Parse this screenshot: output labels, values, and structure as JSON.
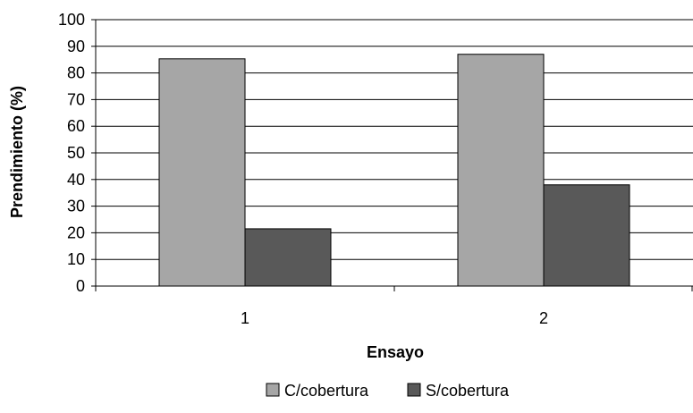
{
  "chart_data": {
    "type": "bar",
    "categories": [
      "1",
      "2"
    ],
    "series": [
      {
        "name": "C/cobertura",
        "values": [
          85.3,
          87.0
        ],
        "color": "#a6a6a6"
      },
      {
        "name": "S/cobertura",
        "values": [
          21.5,
          38.0
        ],
        "color": "#595959"
      }
    ],
    "xlabel": "Ensayo",
    "ylabel": "Prendimiento (%)",
    "ylim": [
      0,
      100
    ],
    "yticks": [
      0,
      10,
      20,
      30,
      40,
      50,
      60,
      70,
      80,
      90,
      100
    ],
    "grid": true,
    "legend_position": "bottom"
  }
}
